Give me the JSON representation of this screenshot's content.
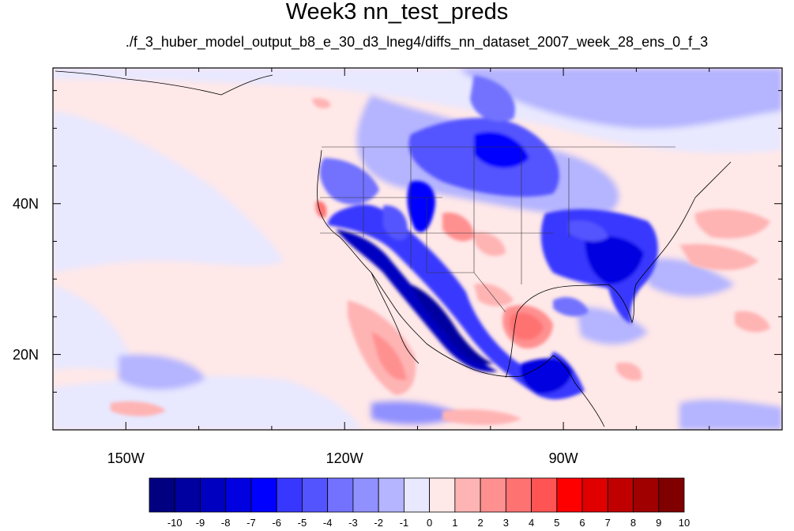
{
  "title": "Week3 nn_test_preds",
  "subtitle": "./f_3_huber_model_output_b8_e_30_d3_lneg4/diffs_nn_dataset_2007_week_28_ens_0_f_3",
  "map": {
    "lon_range": [
      -160,
      -60
    ],
    "lat_range": [
      10,
      58
    ],
    "projection": "cylindrical-equidistant"
  },
  "axes": {
    "x_ticks": [
      {
        "label": "150W",
        "lon": -150
      },
      {
        "label": "120W",
        "lon": -120
      },
      {
        "label": "90W",
        "lon": -90
      }
    ],
    "y_ticks": [
      {
        "label": "40N",
        "lat": 40
      },
      {
        "label": "20N",
        "lat": 20
      }
    ]
  },
  "colorbar": {
    "labels": [
      "-10",
      "-9",
      "-8",
      "-7",
      "-6",
      "-5",
      "-4",
      "-3",
      "-2",
      "-1",
      "0",
      "1",
      "2",
      "3",
      "4",
      "5",
      "6",
      "7",
      "8",
      "9",
      "10"
    ],
    "colors": [
      "#000080",
      "#0000a0",
      "#0000c0",
      "#0000e0",
      "#0000ff",
      "#3737ff",
      "#5454ff",
      "#7272ff",
      "#9090ff",
      "#b4b4ff",
      "#e8e8ff",
      "#ffe8e8",
      "#ffb4b4",
      "#ff9090",
      "#ff7272",
      "#ff5454",
      "#ff0000",
      "#e00000",
      "#c00000",
      "#a00000",
      "#800000"
    ]
  }
}
